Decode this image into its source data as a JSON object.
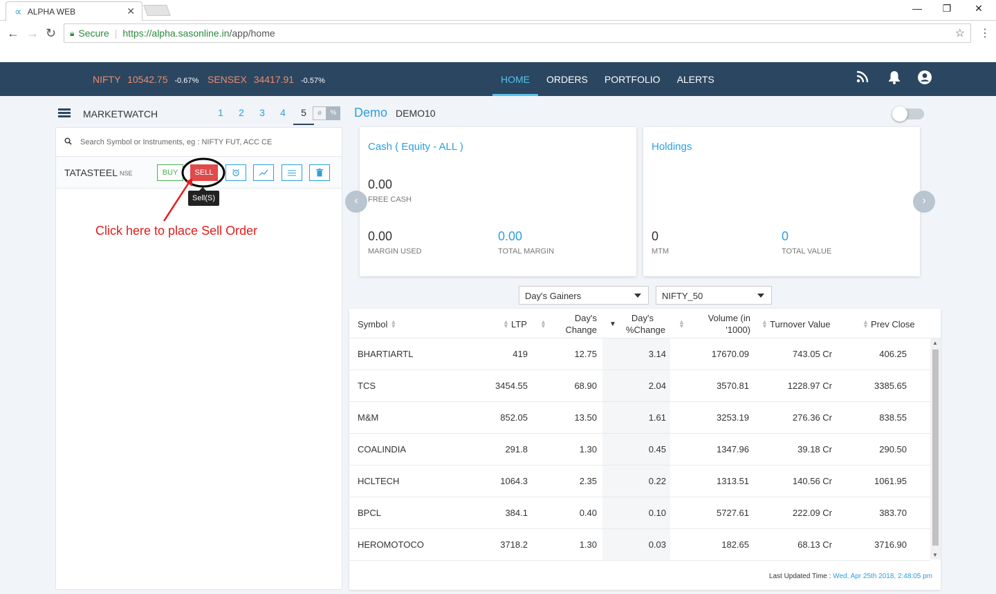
{
  "browser": {
    "tab_title": "ALPHA WEB",
    "tab_close": "✕",
    "secure_label": "Secure",
    "url_host": "https://alpha.sasonline.in",
    "url_path": "/app/home",
    "minimize": "—",
    "restore": "❐",
    "close": "✕"
  },
  "header": {
    "tickers": [
      {
        "name": "NIFTY",
        "value": "10542.75",
        "change": "-0.67%"
      },
      {
        "name": "SENSEX",
        "value": "34417.91",
        "change": "-0.57%"
      }
    ],
    "nav": [
      "HOME",
      "ORDERS",
      "PORTFOLIO",
      "ALERTS"
    ],
    "active_nav": "HOME"
  },
  "marketwatch": {
    "title": "MARKETWATCH",
    "pages": [
      "1",
      "2",
      "3",
      "4",
      "5"
    ],
    "active_page": "5",
    "toggle_hash": "#",
    "toggle_pct": "%",
    "search_placeholder": "Search Symbol or Instruments, eg : NIFTY FUT, ACC CE",
    "scrip": {
      "symbol": "TATASTEEL",
      "exchange": "NSE"
    },
    "buy_label": "BUY",
    "sell_label": "SELL",
    "tooltip": "Sell(S)",
    "annotation": "Click here to place Sell Order"
  },
  "account": {
    "name": "Demo",
    "id": "DEMO10"
  },
  "cash_card": {
    "title": "Cash ( Equity - ALL )",
    "free_cash": "0.00",
    "free_cash_label": "FREE CASH",
    "margin_used": "0.00",
    "margin_used_label": "MARGIN USED",
    "total_margin": "0.00",
    "total_margin_label": "TOTAL MARGIN"
  },
  "holdings_card": {
    "title": "Holdings",
    "mtm": "0",
    "mtm_label": "MTM",
    "total_value": "0",
    "total_value_label": "TOTAL VALUE"
  },
  "filters": {
    "list": "Day's Gainers",
    "index": "NIFTY_50"
  },
  "table": {
    "headers": {
      "symbol": "Symbol",
      "ltp": "LTP",
      "day_change_1": "Day's",
      "day_change_2": "Change",
      "pct_change_1": "Day's",
      "pct_change_2": "%Change",
      "volume_1": "Volume (in",
      "volume_2": "'1000)",
      "turnover": "Turnover Value",
      "prev_close": "Prev Close"
    },
    "rows": [
      {
        "symbol": "BHARTIARTL",
        "ltp": "419",
        "change": "12.75",
        "pct": "3.14",
        "volume": "17670.09",
        "turnover": "743.05 Cr",
        "prev": "406.25"
      },
      {
        "symbol": "TCS",
        "ltp": "3454.55",
        "change": "68.90",
        "pct": "2.04",
        "volume": "3570.81",
        "turnover": "1228.97 Cr",
        "prev": "3385.65"
      },
      {
        "symbol": "M&M",
        "ltp": "852.05",
        "change": "13.50",
        "pct": "1.61",
        "volume": "3253.19",
        "turnover": "276.36 Cr",
        "prev": "838.55"
      },
      {
        "symbol": "COALINDIA",
        "ltp": "291.8",
        "change": "1.30",
        "pct": "0.45",
        "volume": "1347.96",
        "turnover": "39.18 Cr",
        "prev": "290.50"
      },
      {
        "symbol": "HCLTECH",
        "ltp": "1064.3",
        "change": "2.35",
        "pct": "0.22",
        "volume": "1313.51",
        "turnover": "140.56 Cr",
        "prev": "1061.95"
      },
      {
        "symbol": "BPCL",
        "ltp": "384.1",
        "change": "0.40",
        "pct": "0.10",
        "volume": "5727.61",
        "turnover": "222.09 Cr",
        "prev": "383.70"
      },
      {
        "symbol": "HEROMOTOCO",
        "ltp": "3718.2",
        "change": "1.30",
        "pct": "0.03",
        "volume": "182.65",
        "turnover": "68.13 Cr",
        "prev": "3716.90"
      }
    ],
    "last_updated_label": "Last Updated Time :",
    "last_updated_value": "Wed, Apr 25th 2018, 2:48:05 pm"
  },
  "colors": {
    "header_bg": "#2b4660",
    "accent": "#2c9fdc",
    "sell": "#e04a4a",
    "buy": "#4caf50",
    "ticker": "#ef8a6a",
    "annotation": "#e21c1c"
  }
}
